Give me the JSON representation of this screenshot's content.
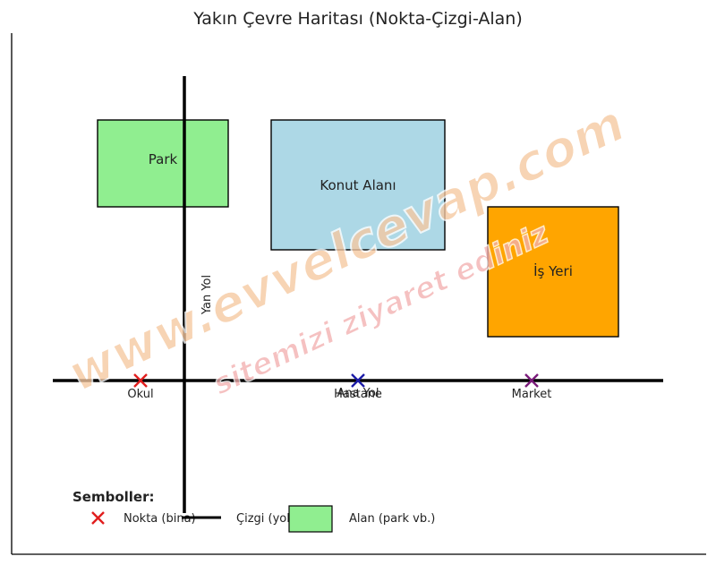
{
  "title": "Yakın Çevre Haritası (Nokta-Çizgi-Alan)",
  "areas": {
    "park": {
      "label": "Park",
      "color": "#90ee90"
    },
    "residential": {
      "label": "Konut Alanı",
      "color": "#add8e6"
    },
    "workplace": {
      "label": "İş Yeri",
      "color": "#ffa500"
    }
  },
  "roads": {
    "side_road": "Yan Yol",
    "main_road": "Ana Yol"
  },
  "points": {
    "school": {
      "label": "Okul",
      "color": "#e11d1d"
    },
    "hospital": {
      "label": "Hastane",
      "color": "#1c1ca8"
    },
    "market": {
      "label": "Market",
      "color": "#7a1a7a"
    }
  },
  "legend": {
    "heading": "Semboller:",
    "point": "Nokta (bina)",
    "line": "Çizgi (yol)",
    "area": "Alan (park vb.)",
    "area_color": "#90ee90",
    "point_color": "#e11d1d"
  },
  "watermark": {
    "line1": "www.evvelcevap.com",
    "line2": "sitemizi ziyaret ediniz"
  }
}
